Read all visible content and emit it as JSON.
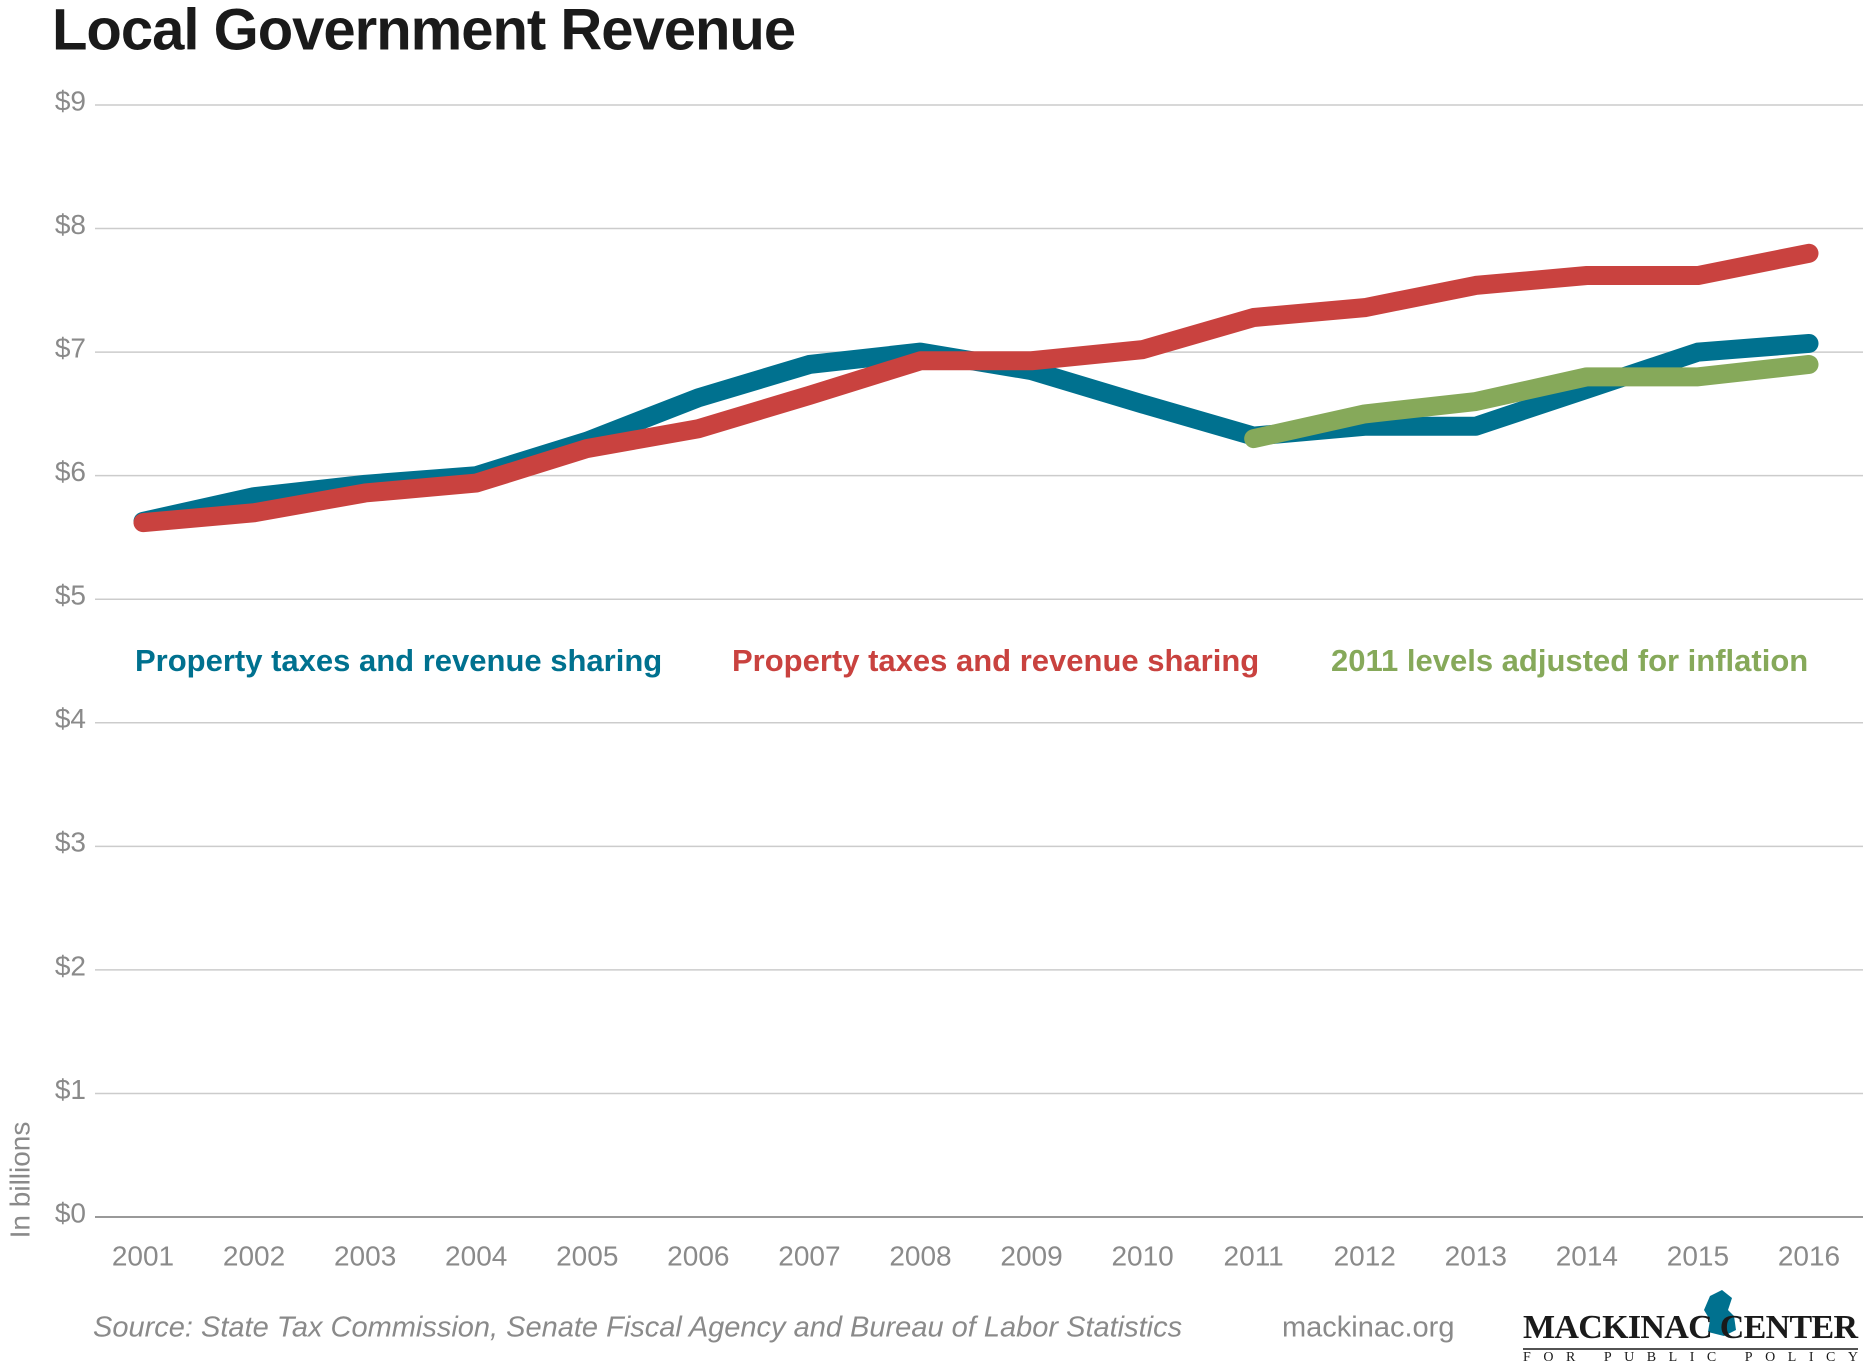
{
  "chart_data": {
    "type": "line",
    "title": "Local Government Revenue",
    "y_label": "In billions",
    "x": [
      2001,
      2002,
      2003,
      2004,
      2005,
      2006,
      2007,
      2008,
      2009,
      2010,
      2011,
      2012,
      2013,
      2014,
      2015,
      2016
    ],
    "xlim": [
      2001,
      2016
    ],
    "ylim": [
      0,
      9
    ],
    "yticks": [
      {
        "value": 0,
        "label": "$0"
      },
      {
        "value": 1,
        "label": "$1"
      },
      {
        "value": 2,
        "label": "$2"
      },
      {
        "value": 3,
        "label": "$3"
      },
      {
        "value": 4,
        "label": "$4"
      },
      {
        "value": 5,
        "label": "$5"
      },
      {
        "value": 6,
        "label": "$6"
      },
      {
        "value": 7,
        "label": "$7"
      },
      {
        "value": 8,
        "label": "$8"
      },
      {
        "value": 9,
        "label": "$9"
      }
    ],
    "grid": true,
    "series": [
      {
        "name": "Property taxes and revenue sharing",
        "color": "#00718f",
        "values": [
          5.63,
          5.83,
          5.93,
          6.0,
          6.28,
          6.63,
          6.9,
          7.0,
          6.85,
          6.58,
          6.32,
          6.4,
          6.4,
          6.7,
          7.0,
          7.07
        ]
      },
      {
        "name": "Property taxes and revenue sharing",
        "color": "#c9423f",
        "values": [
          5.62,
          5.7,
          5.86,
          5.94,
          6.22,
          6.38,
          6.65,
          6.93,
          6.93,
          7.02,
          7.28,
          7.36,
          7.54,
          7.62,
          7.62,
          7.8
        ]
      },
      {
        "name": "2011 levels adjusted for inflation",
        "color": "#86a95a",
        "values": [
          null,
          null,
          null,
          null,
          null,
          null,
          null,
          null,
          null,
          null,
          6.3,
          6.5,
          6.6,
          6.8,
          6.8,
          6.9
        ]
      }
    ],
    "source": "Source: State Tax Commission, Senate Fiscal Agency and Bureau of Labor Statistics",
    "website": "mackinac.org",
    "logo": {
      "name": "MACKINAC CENTER",
      "tagline": "FOR PUBLIC POLICY"
    }
  }
}
